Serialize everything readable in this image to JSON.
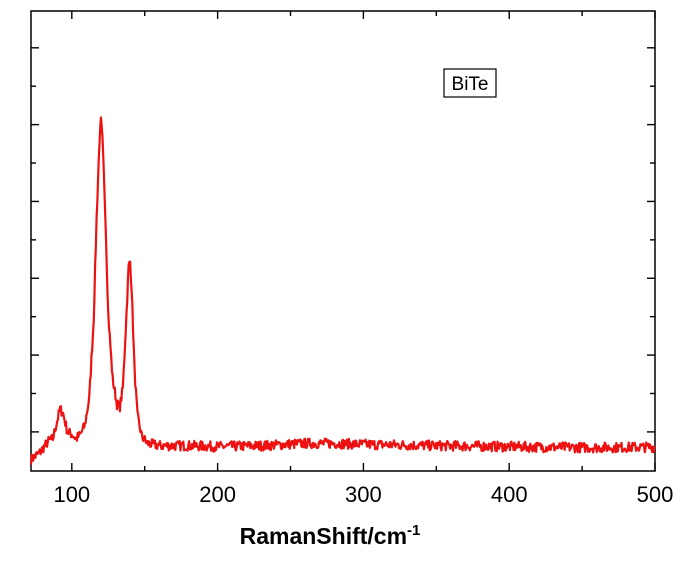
{
  "chart_data": {
    "type": "line",
    "title": "",
    "xlabel": "RamanShift/cm",
    "xlabel_superscript": "-1",
    "ylabel": "",
    "xlim": [
      72,
      500
    ],
    "ylim": [
      0,
      1
    ],
    "x_ticks": [
      100,
      200,
      300,
      400,
      500
    ],
    "x_tick_labels": [
      "100",
      "200",
      "300",
      "400",
      "500"
    ],
    "y_tick_labels_shown": false,
    "grid": false,
    "legend": {
      "text": "BiTe",
      "placement": "top-right"
    },
    "series": [
      {
        "color": "#ee1111",
        "anchors": [
          [
            72,
            0.025
          ],
          [
            78,
            0.04
          ],
          [
            84,
            0.065
          ],
          [
            87,
            0.07
          ],
          [
            90,
            0.11
          ],
          [
            92,
            0.135
          ],
          [
            94,
            0.125
          ],
          [
            97,
            0.085
          ],
          [
            100,
            0.08
          ],
          [
            103,
            0.07
          ],
          [
            106,
            0.08
          ],
          [
            109,
            0.1
          ],
          [
            112,
            0.16
          ],
          [
            115,
            0.33
          ],
          [
            117,
            0.55
          ],
          [
            119,
            0.72
          ],
          [
            120,
            0.76
          ],
          [
            121,
            0.72
          ],
          [
            123,
            0.56
          ],
          [
            125,
            0.34
          ],
          [
            128,
            0.2
          ],
          [
            131,
            0.145
          ],
          [
            133,
            0.14
          ],
          [
            135,
            0.18
          ],
          [
            137,
            0.31
          ],
          [
            139,
            0.445
          ],
          [
            140,
            0.455
          ],
          [
            141,
            0.4
          ],
          [
            143,
            0.22
          ],
          [
            145,
            0.12
          ],
          [
            148,
            0.075
          ],
          [
            152,
            0.06
          ],
          [
            160,
            0.055
          ],
          [
            180,
            0.055
          ],
          [
            200,
            0.053
          ],
          [
            230,
            0.055
          ],
          [
            260,
            0.06
          ],
          [
            280,
            0.06
          ],
          [
            300,
            0.058
          ],
          [
            320,
            0.057
          ],
          [
            350,
            0.055
          ],
          [
            380,
            0.054
          ],
          [
            420,
            0.052
          ],
          [
            460,
            0.051
          ],
          [
            500,
            0.052
          ]
        ]
      }
    ],
    "colors": {
      "line": "#ee1111",
      "axes": "#000000"
    }
  }
}
